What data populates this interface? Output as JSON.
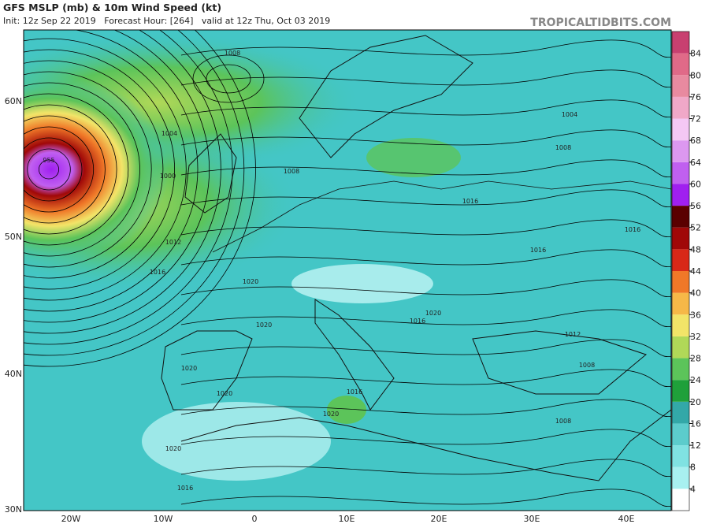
{
  "header": {
    "title": "GFS MSLP (mb) & 10m Wind Speed (kt)",
    "subtitle": "Init: 12z Sep 22 2019   Forecast Hour: [264]   valid at 12z Thu, Oct 03 2019",
    "source": "TROPICALTIDBITS.COM"
  },
  "map": {
    "lat_labels": [
      "60N",
      "50N",
      "40N",
      "30N"
    ],
    "lon_labels": [
      "20W",
      "10W",
      "0",
      "10E",
      "20E",
      "30E",
      "40E"
    ],
    "isobar_labels": [
      "1008",
      "1004",
      "955",
      "1000",
      "1004",
      "1008",
      "1008",
      "1012",
      "1016",
      "1016",
      "1016",
      "1016",
      "1020",
      "1020",
      "1020",
      "1020",
      "1016",
      "1020",
      "1020",
      "1016",
      "1012",
      "1008",
      "1008",
      "1016",
      "1020"
    ]
  },
  "colorbar": {
    "labels": [
      4,
      8,
      12,
      16,
      20,
      24,
      28,
      32,
      36,
      40,
      44,
      48,
      52,
      56,
      60,
      64,
      68,
      72,
      76,
      80,
      84
    ],
    "colors": [
      "#ffffff",
      "#a8f0f0",
      "#80e2e2",
      "#5ccccc",
      "#33a8a8",
      "#1fa03a",
      "#5cc45a",
      "#b0d858",
      "#f2e468",
      "#f6b848",
      "#f07828",
      "#d82818",
      "#a00808",
      "#5a0000",
      "#a020f0",
      "#c060f0",
      "#dc98f0",
      "#f4c8f4",
      "#f0a8c8",
      "#e88aa0",
      "#e06a88",
      "#c84070"
    ]
  }
}
